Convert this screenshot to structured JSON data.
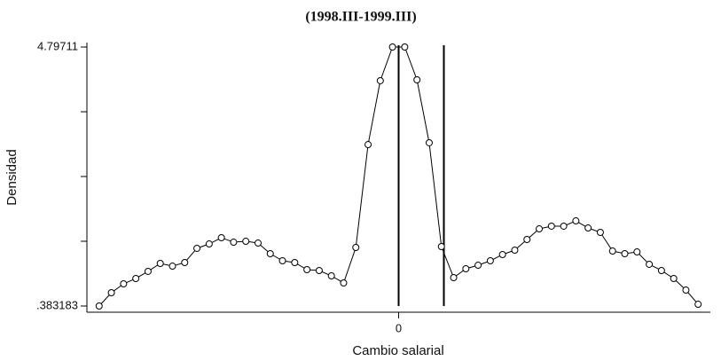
{
  "chart_data": {
    "type": "line",
    "title": "(1998.III-1999.III)",
    "xlabel": "Cambio salarial",
    "ylabel": "Densidad",
    "x": [
      -24.5,
      -23.5,
      -22.5,
      -21.5,
      -20.5,
      -19.5,
      -18.5,
      -17.5,
      -16.5,
      -15.5,
      -14.5,
      -13.5,
      -12.5,
      -11.5,
      -10.5,
      -9.5,
      -8.5,
      -7.5,
      -6.5,
      -5.5,
      -4.5,
      -3.5,
      -2.5,
      -1.5,
      -0.5,
      0.5,
      1.5,
      2.5,
      3.5,
      4.5,
      5.5,
      6.5,
      7.5,
      8.5,
      9.5,
      10.5,
      11.5,
      12.5,
      13.5,
      14.5,
      15.5,
      16.5,
      17.5,
      18.5,
      19.5,
      20.5,
      21.5,
      22.5,
      23.5,
      24.5
    ],
    "series": [
      {
        "name": "Densidad",
        "color": "#000000",
        "values": [
          0.383,
          0.61,
          0.761,
          0.852,
          0.973,
          1.109,
          1.063,
          1.124,
          1.366,
          1.441,
          1.547,
          1.471,
          1.486,
          1.456,
          1.275,
          1.154,
          1.124,
          1.003,
          0.988,
          0.897,
          0.776,
          1.381,
          3.134,
          4.223,
          4.797,
          4.797,
          4.238,
          3.165,
          1.396,
          0.867,
          1.018,
          1.078,
          1.154,
          1.26,
          1.335,
          1.517,
          1.698,
          1.744,
          1.744,
          1.834,
          1.713,
          1.638,
          1.32,
          1.275,
          1.305,
          1.094,
          0.988,
          0.852,
          0.655,
          0.413
        ]
      }
    ],
    "xlim": [
      -25.5,
      25.5
    ],
    "xticks": [
      0
    ],
    "ylim": [
      0.383183,
      4.79711
    ],
    "yticks": [
      {
        "value": 0.383183,
        "label": ".383183"
      },
      4.79711
    ],
    "yminor_ticks": [
      1.486666,
      2.590147,
      3.693629
    ],
    "vlines": [
      0,
      3.7
    ]
  }
}
